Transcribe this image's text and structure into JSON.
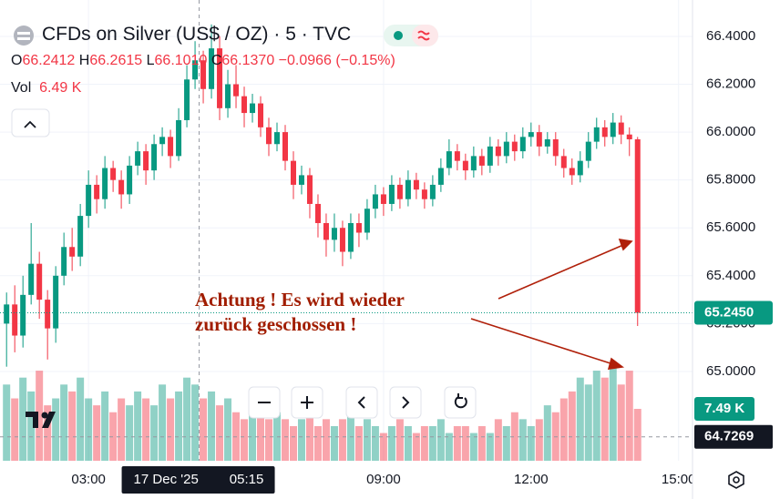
{
  "chart_data": {
    "type": "candlestick",
    "title": "CFDs on Silver (US$ / OZ) · 5 · TVC",
    "ohlc_legend": [
      {
        "label": "O",
        "value": "66.2412"
      },
      {
        "label": "H",
        "value": "66.2615"
      },
      {
        "label": "L",
        "value": "66.1010"
      },
      {
        "label": "C",
        "value": "66.1370"
      }
    ],
    "change": "−0.0966 (−0.15%)",
    "volume_legend": {
      "label": "Vol",
      "value": "6.49 K"
    },
    "up_color": "#089981",
    "down_color": "#f23645",
    "x": [
      80,
      90,
      100,
      110,
      120,
      130,
      140,
      150,
      160,
      170,
      180,
      190,
      200,
      210,
      220,
      230,
      240,
      250,
      260,
      270,
      280,
      290,
      300,
      310,
      320,
      330,
      340,
      350,
      360,
      370,
      380,
      390,
      400,
      410,
      420,
      430,
      440,
      450,
      460,
      470,
      480,
      490,
      500,
      510,
      520,
      530,
      540,
      550,
      560,
      570,
      580,
      590,
      600,
      610,
      620,
      630,
      640,
      650,
      660,
      670,
      680,
      690,
      700,
      710,
      720,
      730,
      740,
      750,
      760,
      770,
      780,
      790,
      800,
      810,
      820,
      830,
      840,
      850
    ],
    "open": [
      65.2,
      65.28,
      65.15,
      65.32,
      65.45,
      65.3,
      65.18,
      65.4,
      65.52,
      65.48,
      65.65,
      65.78,
      65.72,
      65.85,
      65.8,
      65.74,
      65.86,
      65.92,
      65.84,
      65.95,
      65.98,
      65.9,
      66.05,
      66.22,
      66.3,
      66.18,
      66.35,
      66.1,
      66.2,
      66.15,
      66.08,
      66.12,
      66.02,
      65.95,
      66.0,
      65.88,
      65.78,
      65.82,
      65.7,
      65.62,
      65.55,
      65.6,
      65.5,
      65.62,
      65.58,
      65.68,
      65.74,
      65.7,
      65.78,
      65.72,
      65.8,
      65.76,
      65.72,
      65.78,
      65.85,
      65.92,
      65.88,
      65.84,
      65.9,
      65.86,
      65.94,
      65.9,
      65.96,
      65.92,
      65.98,
      66.0,
      65.94,
      65.97,
      65.9,
      65.85,
      65.82,
      65.88,
      65.96,
      66.02,
      65.98,
      66.04,
      65.99,
      65.97
    ],
    "high": [
      65.33,
      65.36,
      65.4,
      65.62,
      65.5,
      65.34,
      65.44,
      65.58,
      65.6,
      65.7,
      65.84,
      65.82,
      65.9,
      65.88,
      65.84,
      65.9,
      65.96,
      65.95,
      65.99,
      66.02,
      66.01,
      66.1,
      66.28,
      66.38,
      66.34,
      66.45,
      66.4,
      66.26,
      66.28,
      66.19,
      66.16,
      66.15,
      66.06,
      66.04,
      66.03,
      65.92,
      65.86,
      65.85,
      65.74,
      65.66,
      65.66,
      65.63,
      65.66,
      65.66,
      65.72,
      65.78,
      65.77,
      65.82,
      65.81,
      65.84,
      65.83,
      65.79,
      65.82,
      65.89,
      65.97,
      65.95,
      65.91,
      65.94,
      65.93,
      65.98,
      65.97,
      66.0,
      65.99,
      66.02,
      66.04,
      66.03,
      66.0,
      66.0,
      65.93,
      65.89,
      65.92,
      66.0,
      66.06,
      66.05,
      66.08,
      66.07,
      66.02,
      65.98
    ],
    "low": [
      65.02,
      65.08,
      65.1,
      65.28,
      65.22,
      65.05,
      65.12,
      65.36,
      65.42,
      65.44,
      65.6,
      65.66,
      65.68,
      65.75,
      65.68,
      65.7,
      65.82,
      65.78,
      65.8,
      65.9,
      65.85,
      65.88,
      66.02,
      66.18,
      66.12,
      66.14,
      66.05,
      66.06,
      66.1,
      66.02,
      66.04,
      65.98,
      65.9,
      65.92,
      65.84,
      65.72,
      65.74,
      65.64,
      65.56,
      65.48,
      65.5,
      65.44,
      65.47,
      65.52,
      65.55,
      65.64,
      65.65,
      65.67,
      65.68,
      65.69,
      65.72,
      65.68,
      65.69,
      65.75,
      65.82,
      65.84,
      65.8,
      65.81,
      65.82,
      65.83,
      65.86,
      65.87,
      65.88,
      65.89,
      65.94,
      65.9,
      65.91,
      65.86,
      65.81,
      65.78,
      65.79,
      65.85,
      65.93,
      65.94,
      65.95,
      65.95,
      65.9,
      65.19
    ],
    "close": [
      65.28,
      65.15,
      65.32,
      65.45,
      65.3,
      65.18,
      65.4,
      65.52,
      65.48,
      65.65,
      65.78,
      65.72,
      65.85,
      65.8,
      65.74,
      65.86,
      65.92,
      65.84,
      65.95,
      65.98,
      65.9,
      66.05,
      66.22,
      66.3,
      66.18,
      66.35,
      66.1,
      66.2,
      66.15,
      66.08,
      66.12,
      66.02,
      65.95,
      66.0,
      65.88,
      65.78,
      65.82,
      65.7,
      65.62,
      65.55,
      65.6,
      65.5,
      65.62,
      65.58,
      65.68,
      65.74,
      65.7,
      65.78,
      65.72,
      65.8,
      65.76,
      65.72,
      65.78,
      65.85,
      65.92,
      65.88,
      65.84,
      65.9,
      65.86,
      65.94,
      65.9,
      65.96,
      65.92,
      65.98,
      66.0,
      65.94,
      65.97,
      65.9,
      65.85,
      65.82,
      65.88,
      65.96,
      66.02,
      65.98,
      66.04,
      65.99,
      65.97,
      65.245
    ],
    "volume": [
      11,
      9,
      12,
      10,
      13,
      8,
      9,
      11,
      10,
      12,
      9,
      8,
      10,
      7,
      9,
      8,
      10,
      9,
      8,
      11,
      9,
      10,
      12,
      11,
      9,
      10,
      8,
      9,
      7,
      6,
      8,
      7,
      6,
      7,
      6,
      5,
      6,
      7,
      5,
      6,
      5,
      6,
      7,
      5,
      6,
      5,
      4,
      5,
      6,
      5,
      4,
      5,
      5,
      6,
      4,
      5,
      5,
      4,
      5,
      4,
      6,
      5,
      7,
      6,
      5,
      6,
      8,
      7,
      9,
      10,
      12,
      11,
      13,
      12,
      14,
      11,
      13,
      7.49
    ],
    "volume_label": "7.49 K",
    "vlim": [
      0,
      66.5
    ],
    "xlim": [
      72,
      917
    ],
    "xticks": [
      {
        "value": 180,
        "label": "03:00"
      },
      {
        "value": 540,
        "label": "09:00"
      },
      {
        "value": 720,
        "label": "12:00"
      },
      {
        "value": 900,
        "label": "15:00"
      }
    ],
    "ylim": [
      64.627,
      66.552
    ],
    "yticks": [
      {
        "value": 66.4,
        "label": "66.4000"
      },
      {
        "value": 66.2,
        "label": "66.2000"
      },
      {
        "value": 66.0,
        "label": "66.0000"
      },
      {
        "value": 65.8,
        "label": "65.8000"
      },
      {
        "value": 65.6,
        "label": "65.6000"
      },
      {
        "value": 65.4,
        "label": "65.4000"
      },
      {
        "value": 65.2,
        "label": "65.2000"
      },
      {
        "value": 65.0,
        "label": "65.0000"
      }
    ],
    "last_price": {
      "value": 65.245,
      "label": "65.2450"
    },
    "crosshair": {
      "x": {
        "value": 315,
        "label": "05:15"
      },
      "date": "17 Dec '25",
      "y": {
        "value": 64.7269,
        "label": "64.7269"
      }
    },
    "annotation": [
      "Achtung ! Es wird wieder",
      "zurück geschossen !"
    ]
  }
}
